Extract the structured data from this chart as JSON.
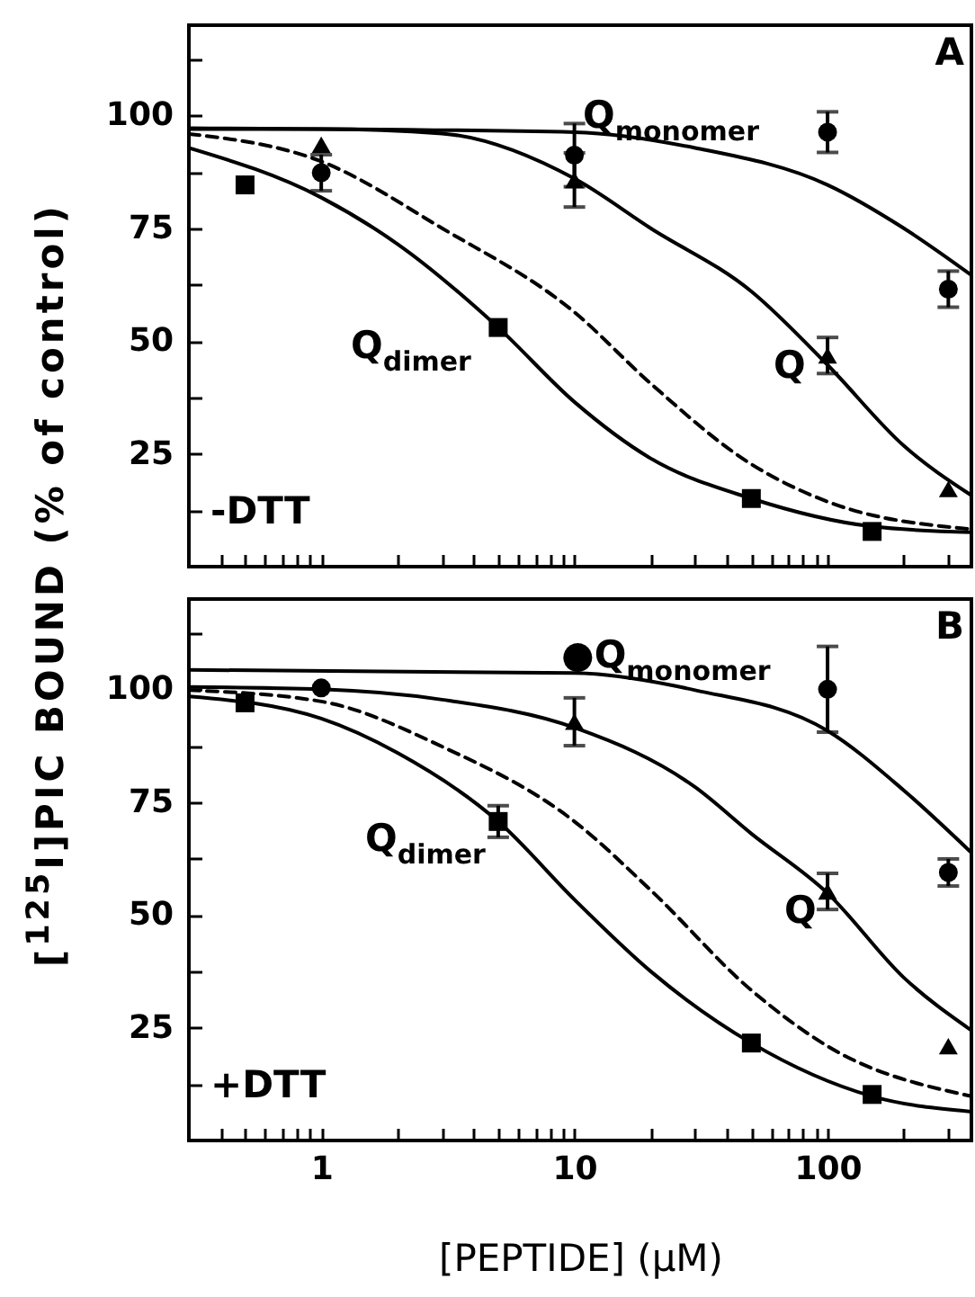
{
  "chart_data": [
    {
      "type": "scatter",
      "log": "x",
      "grid": false,
      "tick_labels": "y",
      "xlim": [
        0.3,
        370
      ],
      "ylim": [
        0,
        120
      ],
      "xticks": [
        {
          "value": 0.4,
          "label": null
        },
        {
          "value": 0.5,
          "label": null
        },
        {
          "value": 0.6,
          "label": null
        },
        {
          "value": 0.7,
          "label": null
        },
        {
          "value": 0.8,
          "label": null
        },
        {
          "value": 0.9,
          "label": null
        },
        1,
        {
          "value": 2,
          "label": null
        },
        {
          "value": 3,
          "label": null
        },
        {
          "value": 4,
          "label": null
        },
        {
          "value": 5,
          "label": null
        },
        {
          "value": 6,
          "label": null
        },
        {
          "value": 7,
          "label": null
        },
        {
          "value": 8,
          "label": null
        },
        {
          "value": 9,
          "label": null
        },
        10,
        {
          "value": 20,
          "label": null
        },
        {
          "value": 30,
          "label": null
        },
        {
          "value": 40,
          "label": null
        },
        {
          "value": 50,
          "label": null
        },
        {
          "value": 60,
          "label": null
        },
        {
          "value": 70,
          "label": null
        },
        {
          "value": 80,
          "label": null
        },
        {
          "value": 90,
          "label": null
        },
        100,
        {
          "value": 200,
          "label": null
        },
        {
          "value": 300,
          "label": null
        }
      ],
      "yticks": [
        {
          "value": 12.5,
          "label": null
        },
        25,
        {
          "value": 37.5,
          "label": null
        },
        50,
        {
          "value": 62.5,
          "label": null
        },
        75,
        {
          "value": 87.5,
          "label": null
        },
        100,
        {
          "value": 112.5,
          "label": null
        }
      ],
      "annotations": [
        "A",
        "-DTT",
        "Q$_{monomer}$",
        "Q",
        "Q$_{dimer}$"
      ],
      "series": [
        {
          "type": "scatter",
          "marker": "circle",
          "color": "#000000",
          "x": [
            1,
            10,
            100,
            300
          ],
          "values": [
            87.3,
            91.2,
            96.3,
            61.5
          ],
          "errors": [
            4,
            7,
            4.5,
            4
          ]
        },
        {
          "type": "scatter",
          "marker": "triangle",
          "color": "#000000",
          "x": [
            1,
            10,
            100,
            300
          ],
          "values": [
            93.5,
            85.7,
            46.8,
            17.2
          ],
          "errors": [
            null,
            6,
            4,
            null
          ]
        },
        {
          "type": "scatter",
          "marker": "square",
          "color": "#000000",
          "x": [
            0.5,
            5,
            50,
            150
          ],
          "values": [
            84.6,
            53,
            15.1,
            7.8
          ]
        },
        {
          "type": "line",
          "line_style": "solid",
          "color": "#000000",
          "x": [
            0.3,
            10,
            30,
            100,
            200,
            370
          ],
          "values": [
            97.2,
            96.3,
            92.8,
            84.6,
            75,
            64.6
          ]
        },
        {
          "type": "line",
          "line_style": "solid",
          "color": "#000000",
          "x": [
            0.3,
            1,
            3,
            10,
            20,
            50,
            100,
            200,
            370
          ],
          "values": [
            97,
            97,
            96,
            86,
            75,
            61,
            44.7,
            26.8,
            15.8
          ]
        },
        {
          "type": "line",
          "line_style": "solid",
          "color": "#000000",
          "x": [
            0.3,
            1,
            2,
            5,
            10,
            20,
            50,
            150,
            370
          ],
          "values": [
            92.8,
            81.8,
            71.5,
            53,
            36.5,
            24,
            15.1,
            8.9,
            7.6
          ]
        },
        {
          "type": "line",
          "line_style": "dashed",
          "color": "#000000",
          "x": [
            0.3,
            1,
            3,
            10,
            20,
            50,
            100,
            370
          ],
          "values": [
            95.9,
            89.8,
            75,
            56.4,
            40.6,
            22.7,
            14.4,
            8.3
          ]
        }
      ]
    },
    {
      "type": "scatter",
      "log": "x",
      "grid": false,
      "xlim": [
        0.3,
        370
      ],
      "ylim": [
        0,
        120
      ],
      "xlabel": "[PEPTIDE] (μM)",
      "ylabel": "[$^{125}$I]PIC BOUND (% of control)",
      "xticks": [
        {
          "value": 0.4,
          "label": null
        },
        {
          "value": 0.5,
          "label": null
        },
        {
          "value": 0.6,
          "label": null
        },
        {
          "value": 0.7,
          "label": null
        },
        {
          "value": 0.8,
          "label": null
        },
        {
          "value": 0.9,
          "label": null
        },
        1,
        {
          "value": 2,
          "label": null
        },
        {
          "value": 3,
          "label": null
        },
        {
          "value": 4,
          "label": null
        },
        {
          "value": 5,
          "label": null
        },
        {
          "value": 6,
          "label": null
        },
        {
          "value": 7,
          "label": null
        },
        {
          "value": 8,
          "label": null
        },
        {
          "value": 9,
          "label": null
        },
        10,
        {
          "value": 20,
          "label": null
        },
        {
          "value": 30,
          "label": null
        },
        {
          "value": 40,
          "label": null
        },
        {
          "value": 50,
          "label": null
        },
        {
          "value": 60,
          "label": null
        },
        {
          "value": 70,
          "label": null
        },
        {
          "value": 80,
          "label": null
        },
        {
          "value": 90,
          "label": null
        },
        100,
        {
          "value": 200,
          "label": null
        },
        {
          "value": 300,
          "label": null
        }
      ],
      "yticks": [
        {
          "value": 12.5,
          "label": null
        },
        25,
        {
          "value": 37.5,
          "label": null
        },
        50,
        {
          "value": 62.5,
          "label": null
        },
        75,
        {
          "value": 87.5,
          "label": null
        },
        100,
        {
          "value": 112.5,
          "label": null
        }
      ],
      "annotations": [
        "B",
        "+DTT",
        "●Q$_{monomer}$",
        "Q",
        "Q$_{dimer}$"
      ],
      "series": [
        {
          "type": "scatter",
          "marker": "circle",
          "color": "#000000",
          "x": [
            1,
            100,
            300
          ],
          "values": [
            100.3,
            100,
            59.4
          ],
          "errors": [
            null,
            9.5,
            3
          ]
        },
        {
          "type": "scatter",
          "marker": "triangle",
          "color": "#000000",
          "x": [
            10,
            100,
            300
          ],
          "values": [
            92.8,
            55.2,
            20.9
          ],
          "errors": [
            5.3,
            4,
            null
          ]
        },
        {
          "type": "scatter",
          "marker": "square",
          "color": "#000000",
          "x": [
            0.5,
            5,
            50,
            150
          ],
          "values": [
            97,
            70.7,
            21.6,
            10.2
          ],
          "errors": [
            null,
            3.5,
            null,
            null
          ]
        },
        {
          "type": "line",
          "line_style": "solid",
          "color": "#000000",
          "x": [
            0.3,
            10,
            30,
            100,
            200,
            370
          ],
          "values": [
            104.3,
            103.6,
            99.8,
            90.8,
            77.6,
            63.8
          ]
        },
        {
          "type": "line",
          "line_style": "solid",
          "color": "#000000",
          "x": [
            0.3,
            1,
            3,
            10,
            30,
            50,
            100,
            200,
            370
          ],
          "values": [
            100.5,
            100,
            97.7,
            91.5,
            78.3,
            68,
            54.8,
            36.1,
            24.4
          ]
        },
        {
          "type": "line",
          "line_style": "solid",
          "color": "#000000",
          "x": [
            0.3,
            1,
            2,
            5,
            10,
            20,
            50,
            150,
            370
          ],
          "values": [
            98.4,
            93.5,
            85.9,
            70.7,
            53.4,
            37.5,
            21.6,
            9.8,
            6.4
          ]
        },
        {
          "type": "line",
          "line_style": "dashed",
          "color": "#000000",
          "x": [
            0.3,
            1,
            3,
            10,
            20,
            50,
            100,
            370
          ],
          "values": [
            99.8,
            97.3,
            87.3,
            70.7,
            55.5,
            33.3,
            20.9,
            9.8
          ]
        }
      ]
    }
  ]
}
